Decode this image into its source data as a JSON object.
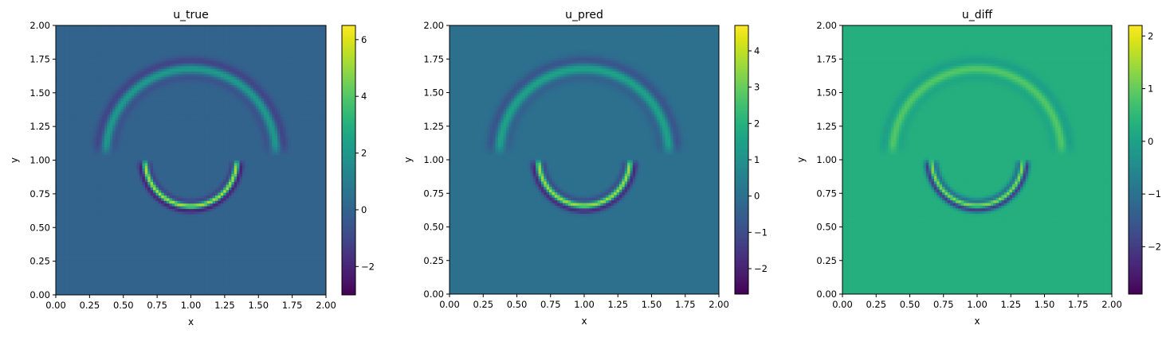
{
  "chart_data": [
    {
      "type": "heatmap",
      "title": "u_true",
      "xlabel": "x",
      "ylabel": "y",
      "xlim": [
        0,
        2
      ],
      "ylim": [
        0,
        2
      ],
      "xticks": [
        "0.00",
        "0.25",
        "0.50",
        "0.75",
        "1.00",
        "1.25",
        "1.50",
        "1.75",
        "2.00"
      ],
      "yticks": [
        "0.00",
        "0.25",
        "0.50",
        "0.75",
        "1.00",
        "1.25",
        "1.50",
        "1.75",
        "2.00"
      ],
      "colorbar": {
        "vmin": -3.0,
        "vmax": 6.5,
        "ticks": [
          -2,
          0,
          2,
          4,
          6
        ],
        "tick_labels": [
          "−2",
          "0",
          "2",
          "4",
          "6"
        ],
        "colormap": "viridis"
      },
      "background_value": 0,
      "features": [
        {
          "kind": "arc",
          "center": [
            1.0,
            1.05
          ],
          "radius": 0.63,
          "angle_range_deg": [
            0,
            180
          ],
          "peak": 2.6,
          "trough": -1.4,
          "width": 0.028
        },
        {
          "kind": "arc",
          "center": [
            1.0,
            1.0
          ],
          "radius": 0.34,
          "angle_range_deg": [
            180,
            360
          ],
          "peak": 6.2,
          "trough": -2.9,
          "width": 0.016
        }
      ]
    },
    {
      "type": "heatmap",
      "title": "u_pred",
      "xlabel": "x",
      "ylabel": "y",
      "xlim": [
        0,
        2
      ],
      "ylim": [
        0,
        2
      ],
      "xticks": [
        "0.00",
        "0.25",
        "0.50",
        "0.75",
        "1.00",
        "1.25",
        "1.50",
        "1.75",
        "2.00"
      ],
      "yticks": [
        "0.00",
        "0.25",
        "0.50",
        "0.75",
        "1.00",
        "1.25",
        "1.50",
        "1.75",
        "2.00"
      ],
      "colorbar": {
        "vmin": -2.7,
        "vmax": 4.7,
        "ticks": [
          -2,
          -1,
          0,
          1,
          2,
          3,
          4
        ],
        "tick_labels": [
          "−2",
          "−1",
          "0",
          "1",
          "2",
          "3",
          "4"
        ],
        "colormap": "viridis"
      },
      "background_value": 0,
      "features": [
        {
          "kind": "arc",
          "center": [
            1.0,
            1.05
          ],
          "radius": 0.63,
          "angle_range_deg": [
            0,
            180
          ],
          "peak": 1.9,
          "trough": -1.0,
          "width": 0.03
        },
        {
          "kind": "arc",
          "center": [
            1.0,
            1.0
          ],
          "radius": 0.34,
          "angle_range_deg": [
            180,
            360
          ],
          "peak": 4.4,
          "trough": -2.4,
          "width": 0.018
        }
      ]
    },
    {
      "type": "heatmap",
      "title": "u_diff",
      "xlabel": "x",
      "ylabel": "y",
      "xlim": [
        0,
        2
      ],
      "ylim": [
        0,
        2
      ],
      "xticks": [
        "0.00",
        "0.25",
        "0.50",
        "0.75",
        "1.00",
        "1.25",
        "1.50",
        "1.75",
        "2.00"
      ],
      "yticks": [
        "0.00",
        "0.25",
        "0.50",
        "0.75",
        "1.00",
        "1.25",
        "1.50",
        "1.75",
        "2.00"
      ],
      "colorbar": {
        "vmin": -2.9,
        "vmax": 2.2,
        "ticks": [
          -2,
          -1,
          0,
          1,
          2
        ],
        "tick_labels": [
          "−2",
          "−1",
          "0",
          "1",
          "2"
        ],
        "colormap": "viridis"
      },
      "background_value": 0.3,
      "features": [
        {
          "kind": "arc",
          "center": [
            1.0,
            1.05
          ],
          "radius": 0.63,
          "angle_range_deg": [
            0,
            180
          ],
          "peak": 0.7,
          "trough": -0.4,
          "width": 0.028
        },
        {
          "kind": "arc",
          "center": [
            1.0,
            1.0
          ],
          "radius": 0.34,
          "angle_range_deg": [
            180,
            360
          ],
          "peak": 1.8,
          "trough": -2.6,
          "width": 0.016
        }
      ]
    }
  ]
}
